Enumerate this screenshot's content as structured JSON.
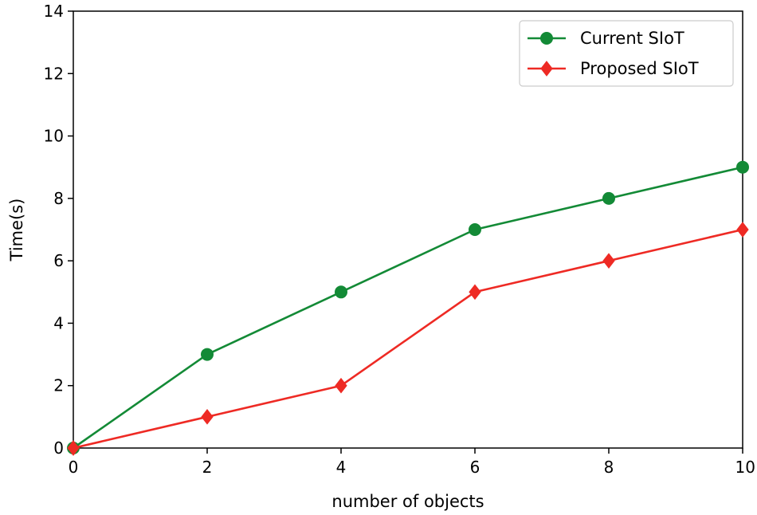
{
  "chart_data": {
    "type": "line",
    "title": "",
    "xlabel": "number of objects",
    "ylabel": "Time(s)",
    "xlim": [
      0,
      10
    ],
    "ylim": [
      0,
      14
    ],
    "xticks": [
      0,
      2,
      4,
      6,
      8,
      10
    ],
    "yticks": [
      0,
      2,
      4,
      6,
      8,
      10,
      12,
      14
    ],
    "grid": false,
    "legend_position": "top-right",
    "x": [
      0,
      2,
      4,
      6,
      8,
      10
    ],
    "series": [
      {
        "name": "Current SIoT",
        "values": [
          0,
          3,
          5,
          7,
          8,
          9
        ],
        "color": "#138a36",
        "marker": "circle"
      },
      {
        "name": "Proposed SIoT",
        "values": [
          0,
          1,
          2,
          5,
          6,
          7
        ],
        "color": "#ee2a24",
        "marker": "diamond"
      }
    ]
  }
}
